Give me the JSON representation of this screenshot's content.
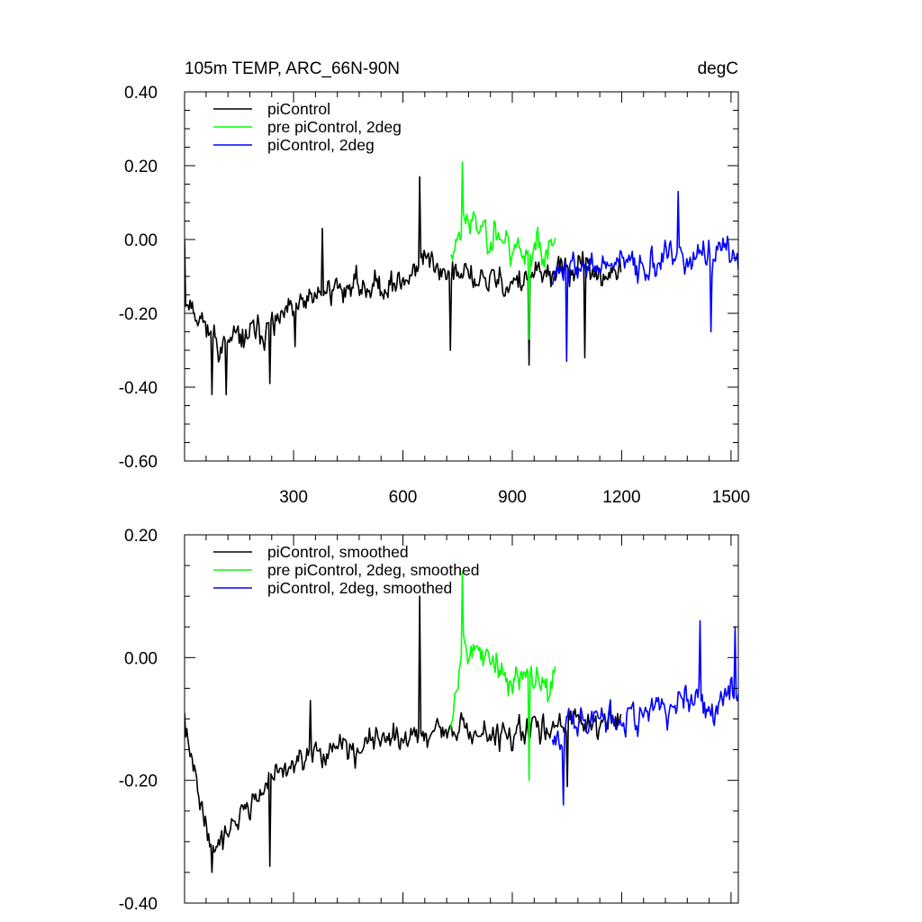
{
  "chart_data": [
    {
      "type": "line",
      "title": "105m TEMP, ARC_66N-90N",
      "units": "degC",
      "xlim": [
        1,
        1520
      ],
      "ylim": [
        -0.6,
        0.4
      ],
      "xticks": [
        300,
        600,
        900,
        1200,
        1500
      ],
      "xtick_labels": [
        "300",
        "600",
        "900",
        "1200",
        "1500"
      ],
      "yticks": [
        -0.6,
        -0.4,
        -0.2,
        0.0,
        0.2,
        0.4
      ],
      "ytick_labels": [
        "-0.60",
        "-0.40",
        "-0.20",
        "0.00",
        "0.20",
        "0.40"
      ],
      "legend_position": "top-left",
      "series": [
        {
          "name": "piControl",
          "color": "#000000",
          "x_start": 1,
          "x_end": 1200,
          "trend": [
            [
              1,
              -0.15
            ],
            [
              100,
              -0.29
            ],
            [
              250,
              -0.23
            ],
            [
              400,
              -0.13
            ],
            [
              600,
              -0.12
            ],
            [
              650,
              -0.05
            ],
            [
              750,
              -0.1
            ],
            [
              900,
              -0.12
            ],
            [
              1050,
              -0.08
            ],
            [
              1200,
              -0.1
            ]
          ],
          "noise": 0.065,
          "seed": 11,
          "spikes": [
            [
              1,
              0.0
            ],
            [
              75,
              -0.42
            ],
            [
              115,
              -0.42
            ],
            [
              235,
              -0.39
            ],
            [
              305,
              -0.29
            ],
            [
              380,
              0.03
            ],
            [
              645,
              0.17
            ],
            [
              730,
              -0.3
            ],
            [
              945,
              -0.34
            ],
            [
              1100,
              -0.32
            ]
          ]
        },
        {
          "name": "pre piControl, 2deg",
          "color": "#00ff00",
          "x_start": 730,
          "x_end": 1020,
          "trend": [
            [
              730,
              -0.05
            ],
            [
              760,
              0.05
            ],
            [
              850,
              0.02
            ],
            [
              900,
              -0.02
            ],
            [
              1020,
              -0.03
            ]
          ],
          "noise": 0.08,
          "seed": 23,
          "spikes": [
            [
              762,
              0.21
            ],
            [
              945,
              -0.27
            ]
          ]
        },
        {
          "name": "piControl, 2deg",
          "color": "#0000ff",
          "x_start": 1010,
          "x_end": 1520,
          "trend": [
            [
              1010,
              -0.08
            ],
            [
              1200,
              -0.07
            ],
            [
              1400,
              -0.05
            ],
            [
              1520,
              -0.04
            ]
          ],
          "noise": 0.07,
          "seed": 37,
          "spikes": [
            [
              1050,
              -0.33
            ],
            [
              1355,
              0.13
            ],
            [
              1445,
              -0.25
            ]
          ]
        }
      ]
    },
    {
      "type": "line",
      "title": "",
      "xlim": [
        1,
        1520
      ],
      "ylim": [
        -0.4,
        0.2
      ],
      "xticks": [
        300,
        600,
        900,
        1200,
        1500
      ],
      "yticks": [
        -0.4,
        -0.2,
        0.0,
        0.2
      ],
      "ytick_labels": [
        "-0.40",
        "-0.20",
        "0.00",
        "0.20"
      ],
      "legend_position": "top-left",
      "series": [
        {
          "name": "piControl, smoothed",
          "color": "#000000",
          "x_start": 1,
          "x_end": 1200,
          "trend": [
            [
              1,
              -0.12
            ],
            [
              75,
              -0.31
            ],
            [
              150,
              -0.26
            ],
            [
              250,
              -0.19
            ],
            [
              400,
              -0.15
            ],
            [
              600,
              -0.13
            ],
            [
              700,
              -0.12
            ],
            [
              900,
              -0.13
            ],
            [
              1050,
              -0.1
            ],
            [
              1200,
              -0.11
            ]
          ],
          "noise": 0.035,
          "seed": 41,
          "spikes": [
            [
              1,
              -0.09
            ],
            [
              75,
              -0.35
            ],
            [
              235,
              -0.34
            ],
            [
              345,
              -0.07
            ],
            [
              645,
              0.1
            ],
            [
              1050,
              -0.21
            ]
          ]
        },
        {
          "name": "pre piControl, 2deg, smoothed",
          "color": "#00ff00",
          "x_start": 730,
          "x_end": 1020,
          "trend": [
            [
              730,
              -0.1
            ],
            [
              760,
              0.02
            ],
            [
              850,
              -0.01
            ],
            [
              900,
              -0.04
            ],
            [
              1020,
              -0.03
            ]
          ],
          "noise": 0.045,
          "seed": 53,
          "spikes": [
            [
              762,
              0.14
            ],
            [
              945,
              -0.2
            ]
          ]
        },
        {
          "name": "piControl, 2deg, smoothed",
          "color": "#0000ff",
          "x_start": 1010,
          "x_end": 1520,
          "trend": [
            [
              1010,
              -0.12
            ],
            [
              1200,
              -0.09
            ],
            [
              1400,
              -0.08
            ],
            [
              1520,
              -0.05
            ]
          ],
          "noise": 0.045,
          "seed": 67,
          "spikes": [
            [
              1040,
              -0.24
            ],
            [
              1415,
              0.06
            ],
            [
              1510,
              0.05
            ]
          ]
        }
      ]
    }
  ]
}
